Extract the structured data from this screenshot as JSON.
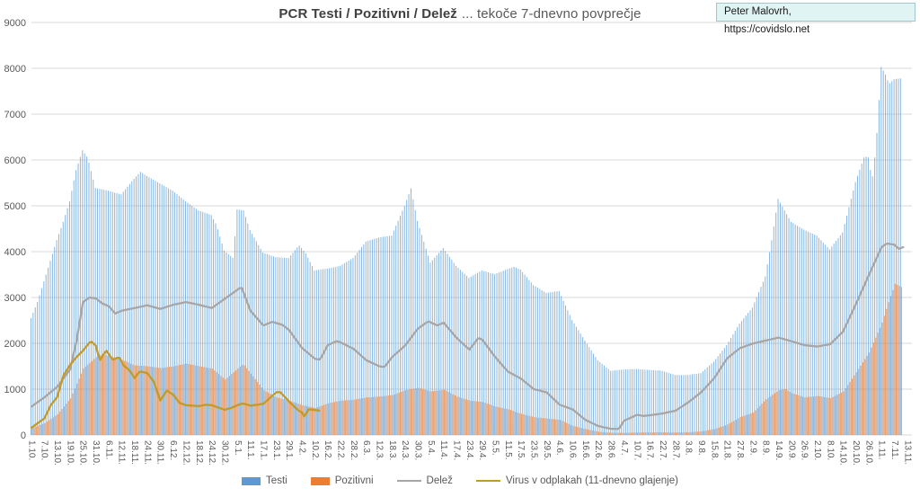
{
  "title": {
    "main": "PCR Testi / Pozitivni / Delež",
    "suffix": "... tekoče 7-dnevno povprečje"
  },
  "annotation": {
    "line1": "Peter Malovrh,",
    "line2": "https://covidslo.net"
  },
  "colors": {
    "testi": "#5B9BD5",
    "pozitivni": "#ED7D31",
    "delez": "#A6A6A6",
    "virus": "#C49A27",
    "gridline": "#D9D9D9",
    "axis_text": "#595959"
  },
  "chart_data": {
    "type": "bar",
    "subtype": "daily bars with line overlays, 7-day rolling averages",
    "title": "PCR Testi / Pozitivni / Delež ... tekoče 7-dnevno povprečje",
    "ylim": [
      0,
      9000
    ],
    "y_ticks": [
      0,
      1000,
      2000,
      3000,
      4000,
      5000,
      6000,
      7000,
      8000,
      9000
    ],
    "grid": "horizontal",
    "legend_position": "bottom",
    "x_tick_labels": [
      "1.10.",
      "7.10.",
      "13.10.",
      "19.10.",
      "25.10.",
      "31.10.",
      "6.11.",
      "12.11.",
      "18.11.",
      "24.11.",
      "30.11.",
      "6.12.",
      "12.12.",
      "18.12.",
      "24.12.",
      "30.12.",
      "5.1.",
      "11.1.",
      "17.1.",
      "23.1.",
      "29.1.",
      "4.2.",
      "10.2.",
      "16.2.",
      "22.2.",
      "28.2.",
      "6.3.",
      "12.3.",
      "18.3.",
      "24.3.",
      "30.3.",
      "5.4.",
      "11.4.",
      "17.4.",
      "23.4.",
      "29.4.",
      "5.5.",
      "11.5.",
      "17.5.",
      "23.5.",
      "29.5.",
      "4.6.",
      "10.6.",
      "16.6.",
      "22.6.",
      "28.6.",
      "4.7.",
      "10.7.",
      "16.7.",
      "22.7.",
      "28.7.",
      "3.8.",
      "9.8.",
      "15.8.",
      "21.8.",
      "27.8.",
      "2.9.",
      "8.9.",
      "14.9.",
      "20.9.",
      "26.9.",
      "2.10.",
      "8.10.",
      "14.10.",
      "20.10.",
      "26.10.",
      "1.11.",
      "7.11.",
      "13.11."
    ],
    "x_note": "points use x = tick index (one tick every 6 days, daily bars between)",
    "series": [
      {
        "name": "Testi",
        "type": "bar",
        "color": "#5B9BD5",
        "points": [
          [
            0,
            2550
          ],
          [
            0.5,
            2900
          ],
          [
            1,
            3350
          ],
          [
            1.5,
            3800
          ],
          [
            2,
            4250
          ],
          [
            2.5,
            4650
          ],
          [
            3,
            5100
          ],
          [
            3.5,
            5780
          ],
          [
            4,
            6210
          ],
          [
            4.4,
            6050
          ],
          [
            5,
            5390
          ],
          [
            6,
            5330
          ],
          [
            7,
            5250
          ],
          [
            8,
            5590
          ],
          [
            8.5,
            5740
          ],
          [
            9,
            5650
          ],
          [
            10,
            5490
          ],
          [
            11,
            5330
          ],
          [
            12,
            5100
          ],
          [
            13,
            4900
          ],
          [
            14,
            4800
          ],
          [
            14.4,
            4580
          ],
          [
            15,
            4020
          ],
          [
            15.7,
            3860
          ],
          [
            16,
            4920
          ],
          [
            16.5,
            4900
          ],
          [
            17,
            4470
          ],
          [
            18,
            3980
          ],
          [
            19,
            3880
          ],
          [
            20,
            3860
          ],
          [
            20.8,
            4140
          ],
          [
            21.3,
            3980
          ],
          [
            22,
            3590
          ],
          [
            23,
            3630
          ],
          [
            24,
            3690
          ],
          [
            25,
            3860
          ],
          [
            26,
            4220
          ],
          [
            27,
            4310
          ],
          [
            28,
            4350
          ],
          [
            29,
            5000
          ],
          [
            29.5,
            5380
          ],
          [
            30,
            4670
          ],
          [
            31,
            3760
          ],
          [
            32,
            4080
          ],
          [
            33,
            3690
          ],
          [
            34,
            3430
          ],
          [
            35,
            3590
          ],
          [
            36,
            3510
          ],
          [
            37,
            3620
          ],
          [
            37.5,
            3670
          ],
          [
            38,
            3610
          ],
          [
            39,
            3270
          ],
          [
            40,
            3100
          ],
          [
            41,
            3140
          ],
          [
            42,
            2510
          ],
          [
            43,
            2060
          ],
          [
            44,
            1630
          ],
          [
            45,
            1400
          ],
          [
            46,
            1430
          ],
          [
            47,
            1440
          ],
          [
            48,
            1420
          ],
          [
            49,
            1400
          ],
          [
            50,
            1310
          ],
          [
            51,
            1310
          ],
          [
            52,
            1350
          ],
          [
            53,
            1600
          ],
          [
            54,
            1960
          ],
          [
            55,
            2430
          ],
          [
            56,
            2780
          ],
          [
            57,
            3460
          ],
          [
            57.5,
            4250
          ],
          [
            58,
            5150
          ],
          [
            59,
            4650
          ],
          [
            60,
            4480
          ],
          [
            61,
            4350
          ],
          [
            62,
            4050
          ],
          [
            63,
            4420
          ],
          [
            64,
            5520
          ],
          [
            64.7,
            6080
          ],
          [
            65,
            6060
          ],
          [
            65.3,
            5560
          ],
          [
            65.6,
            6300
          ],
          [
            66,
            8030
          ],
          [
            66.3,
            7890
          ],
          [
            66.6,
            7660
          ],
          [
            67,
            7760
          ],
          [
            67.5,
            7780
          ]
        ]
      },
      {
        "name": "Pozitivni",
        "type": "bar",
        "color": "#ED7D31",
        "points": [
          [
            0,
            150
          ],
          [
            1,
            260
          ],
          [
            2,
            450
          ],
          [
            3,
            800
          ],
          [
            3.5,
            1120
          ],
          [
            4,
            1450
          ],
          [
            5,
            1700
          ],
          [
            5.5,
            1760
          ],
          [
            6,
            1720
          ],
          [
            7,
            1640
          ],
          [
            8,
            1520
          ],
          [
            9,
            1500
          ],
          [
            10,
            1460
          ],
          [
            11,
            1500
          ],
          [
            12,
            1560
          ],
          [
            13,
            1500
          ],
          [
            14,
            1450
          ],
          [
            15,
            1210
          ],
          [
            16,
            1450
          ],
          [
            16.4,
            1550
          ],
          [
            17,
            1340
          ],
          [
            18,
            980
          ],
          [
            19,
            820
          ],
          [
            20,
            750
          ],
          [
            21,
            650
          ],
          [
            22,
            590
          ],
          [
            23,
            690
          ],
          [
            24,
            750
          ],
          [
            25,
            770
          ],
          [
            26,
            820
          ],
          [
            27,
            840
          ],
          [
            28,
            870
          ],
          [
            29,
            980
          ],
          [
            30,
            1030
          ],
          [
            31,
            950
          ],
          [
            32,
            990
          ],
          [
            33,
            840
          ],
          [
            34,
            750
          ],
          [
            35,
            720
          ],
          [
            36,
            620
          ],
          [
            37,
            560
          ],
          [
            38,
            460
          ],
          [
            39,
            390
          ],
          [
            40,
            360
          ],
          [
            41,
            330
          ],
          [
            42,
            200
          ],
          [
            43,
            130
          ],
          [
            44,
            70
          ],
          [
            45,
            50
          ],
          [
            46,
            50
          ],
          [
            47,
            55
          ],
          [
            48,
            60
          ],
          [
            49,
            60
          ],
          [
            50,
            55
          ],
          [
            51,
            60
          ],
          [
            52,
            80
          ],
          [
            53,
            130
          ],
          [
            54,
            230
          ],
          [
            55,
            390
          ],
          [
            56,
            490
          ],
          [
            57,
            780
          ],
          [
            58,
            980
          ],
          [
            58.5,
            1000
          ],
          [
            59,
            915
          ],
          [
            60,
            820
          ],
          [
            61,
            850
          ],
          [
            62,
            805
          ],
          [
            63,
            950
          ],
          [
            64,
            1370
          ],
          [
            65,
            1800
          ],
          [
            66,
            2450
          ],
          [
            66.5,
            2900
          ],
          [
            67,
            3300
          ],
          [
            67.5,
            3230
          ]
        ]
      },
      {
        "name": "Delež",
        "type": "line",
        "color": "#A6A6A6",
        "points": [
          [
            0,
            620
          ],
          [
            1,
            820
          ],
          [
            2,
            1050
          ],
          [
            3,
            1430
          ],
          [
            3.5,
            2050
          ],
          [
            4,
            2900
          ],
          [
            4.5,
            3000
          ],
          [
            5,
            2980
          ],
          [
            5.5,
            2870
          ],
          [
            6,
            2810
          ],
          [
            6.5,
            2650
          ],
          [
            7,
            2710
          ],
          [
            8,
            2770
          ],
          [
            9,
            2830
          ],
          [
            10,
            2750
          ],
          [
            11,
            2840
          ],
          [
            12,
            2900
          ],
          [
            13,
            2840
          ],
          [
            14,
            2770
          ],
          [
            15,
            2970
          ],
          [
            16,
            3170
          ],
          [
            16.3,
            3230
          ],
          [
            17,
            2710
          ],
          [
            18,
            2390
          ],
          [
            18.7,
            2470
          ],
          [
            19.5,
            2400
          ],
          [
            20,
            2290
          ],
          [
            21,
            1900
          ],
          [
            22,
            1665
          ],
          [
            22.4,
            1640
          ],
          [
            23,
            1960
          ],
          [
            23.7,
            2050
          ],
          [
            24,
            2020
          ],
          [
            25,
            1880
          ],
          [
            26,
            1630
          ],
          [
            27,
            1500
          ],
          [
            27.4,
            1480
          ],
          [
            28,
            1700
          ],
          [
            29,
            1950
          ],
          [
            30,
            2320
          ],
          [
            30.8,
            2480
          ],
          [
            31.5,
            2390
          ],
          [
            32,
            2450
          ],
          [
            33,
            2120
          ],
          [
            34,
            1860
          ],
          [
            34.7,
            2120
          ],
          [
            35,
            2080
          ],
          [
            36,
            1700
          ],
          [
            37,
            1380
          ],
          [
            38,
            1230
          ],
          [
            39,
            1000
          ],
          [
            40,
            930
          ],
          [
            41,
            660
          ],
          [
            42,
            560
          ],
          [
            43,
            330
          ],
          [
            44,
            195
          ],
          [
            45,
            135
          ],
          [
            45.6,
            130
          ],
          [
            46,
            310
          ],
          [
            47,
            440
          ],
          [
            47.5,
            415
          ],
          [
            48,
            430
          ],
          [
            49,
            470
          ],
          [
            50,
            530
          ],
          [
            51,
            715
          ],
          [
            52,
            935
          ],
          [
            53,
            1240
          ],
          [
            54,
            1670
          ],
          [
            55,
            1895
          ],
          [
            56,
            1995
          ],
          [
            57,
            2060
          ],
          [
            58,
            2125
          ],
          [
            59,
            2045
          ],
          [
            60,
            1960
          ],
          [
            61,
            1930
          ],
          [
            62,
            1980
          ],
          [
            63,
            2255
          ],
          [
            64,
            2855
          ],
          [
            65,
            3485
          ],
          [
            66,
            4100
          ],
          [
            66.4,
            4180
          ],
          [
            67,
            4150
          ],
          [
            67.3,
            4060
          ],
          [
            67.7,
            4100
          ]
        ]
      },
      {
        "name": "Virus v odplakah (11-dnevno glajenje)",
        "type": "line",
        "color": "#C49A27",
        "points": [
          [
            0,
            160
          ],
          [
            0.5,
            260
          ],
          [
            1,
            360
          ],
          [
            1.5,
            650
          ],
          [
            2,
            830
          ],
          [
            2.5,
            1310
          ],
          [
            3,
            1530
          ],
          [
            3.5,
            1700
          ],
          [
            4,
            1840
          ],
          [
            4.6,
            2050
          ],
          [
            5,
            1950
          ],
          [
            5.3,
            1620
          ],
          [
            5.8,
            1850
          ],
          [
            6.3,
            1640
          ],
          [
            6.8,
            1700
          ],
          [
            7.2,
            1500
          ],
          [
            7.6,
            1420
          ],
          [
            8,
            1240
          ],
          [
            8.4,
            1390
          ],
          [
            9,
            1350
          ],
          [
            9.5,
            1160
          ],
          [
            10,
            750
          ],
          [
            10.5,
            970
          ],
          [
            11,
            880
          ],
          [
            11.5,
            700
          ],
          [
            12,
            650
          ],
          [
            13,
            630
          ],
          [
            13.5,
            660
          ],
          [
            14,
            650
          ],
          [
            15,
            550
          ],
          [
            15.5,
            590
          ],
          [
            16,
            650
          ],
          [
            16.4,
            690
          ],
          [
            17,
            640
          ],
          [
            18,
            680
          ],
          [
            19,
            930
          ],
          [
            19.3,
            940
          ],
          [
            20,
            730
          ],
          [
            20.7,
            540
          ],
          [
            21,
            490
          ],
          [
            21.2,
            390
          ],
          [
            21.5,
            560
          ],
          [
            22,
            545
          ],
          [
            22.4,
            530
          ]
        ]
      }
    ]
  }
}
